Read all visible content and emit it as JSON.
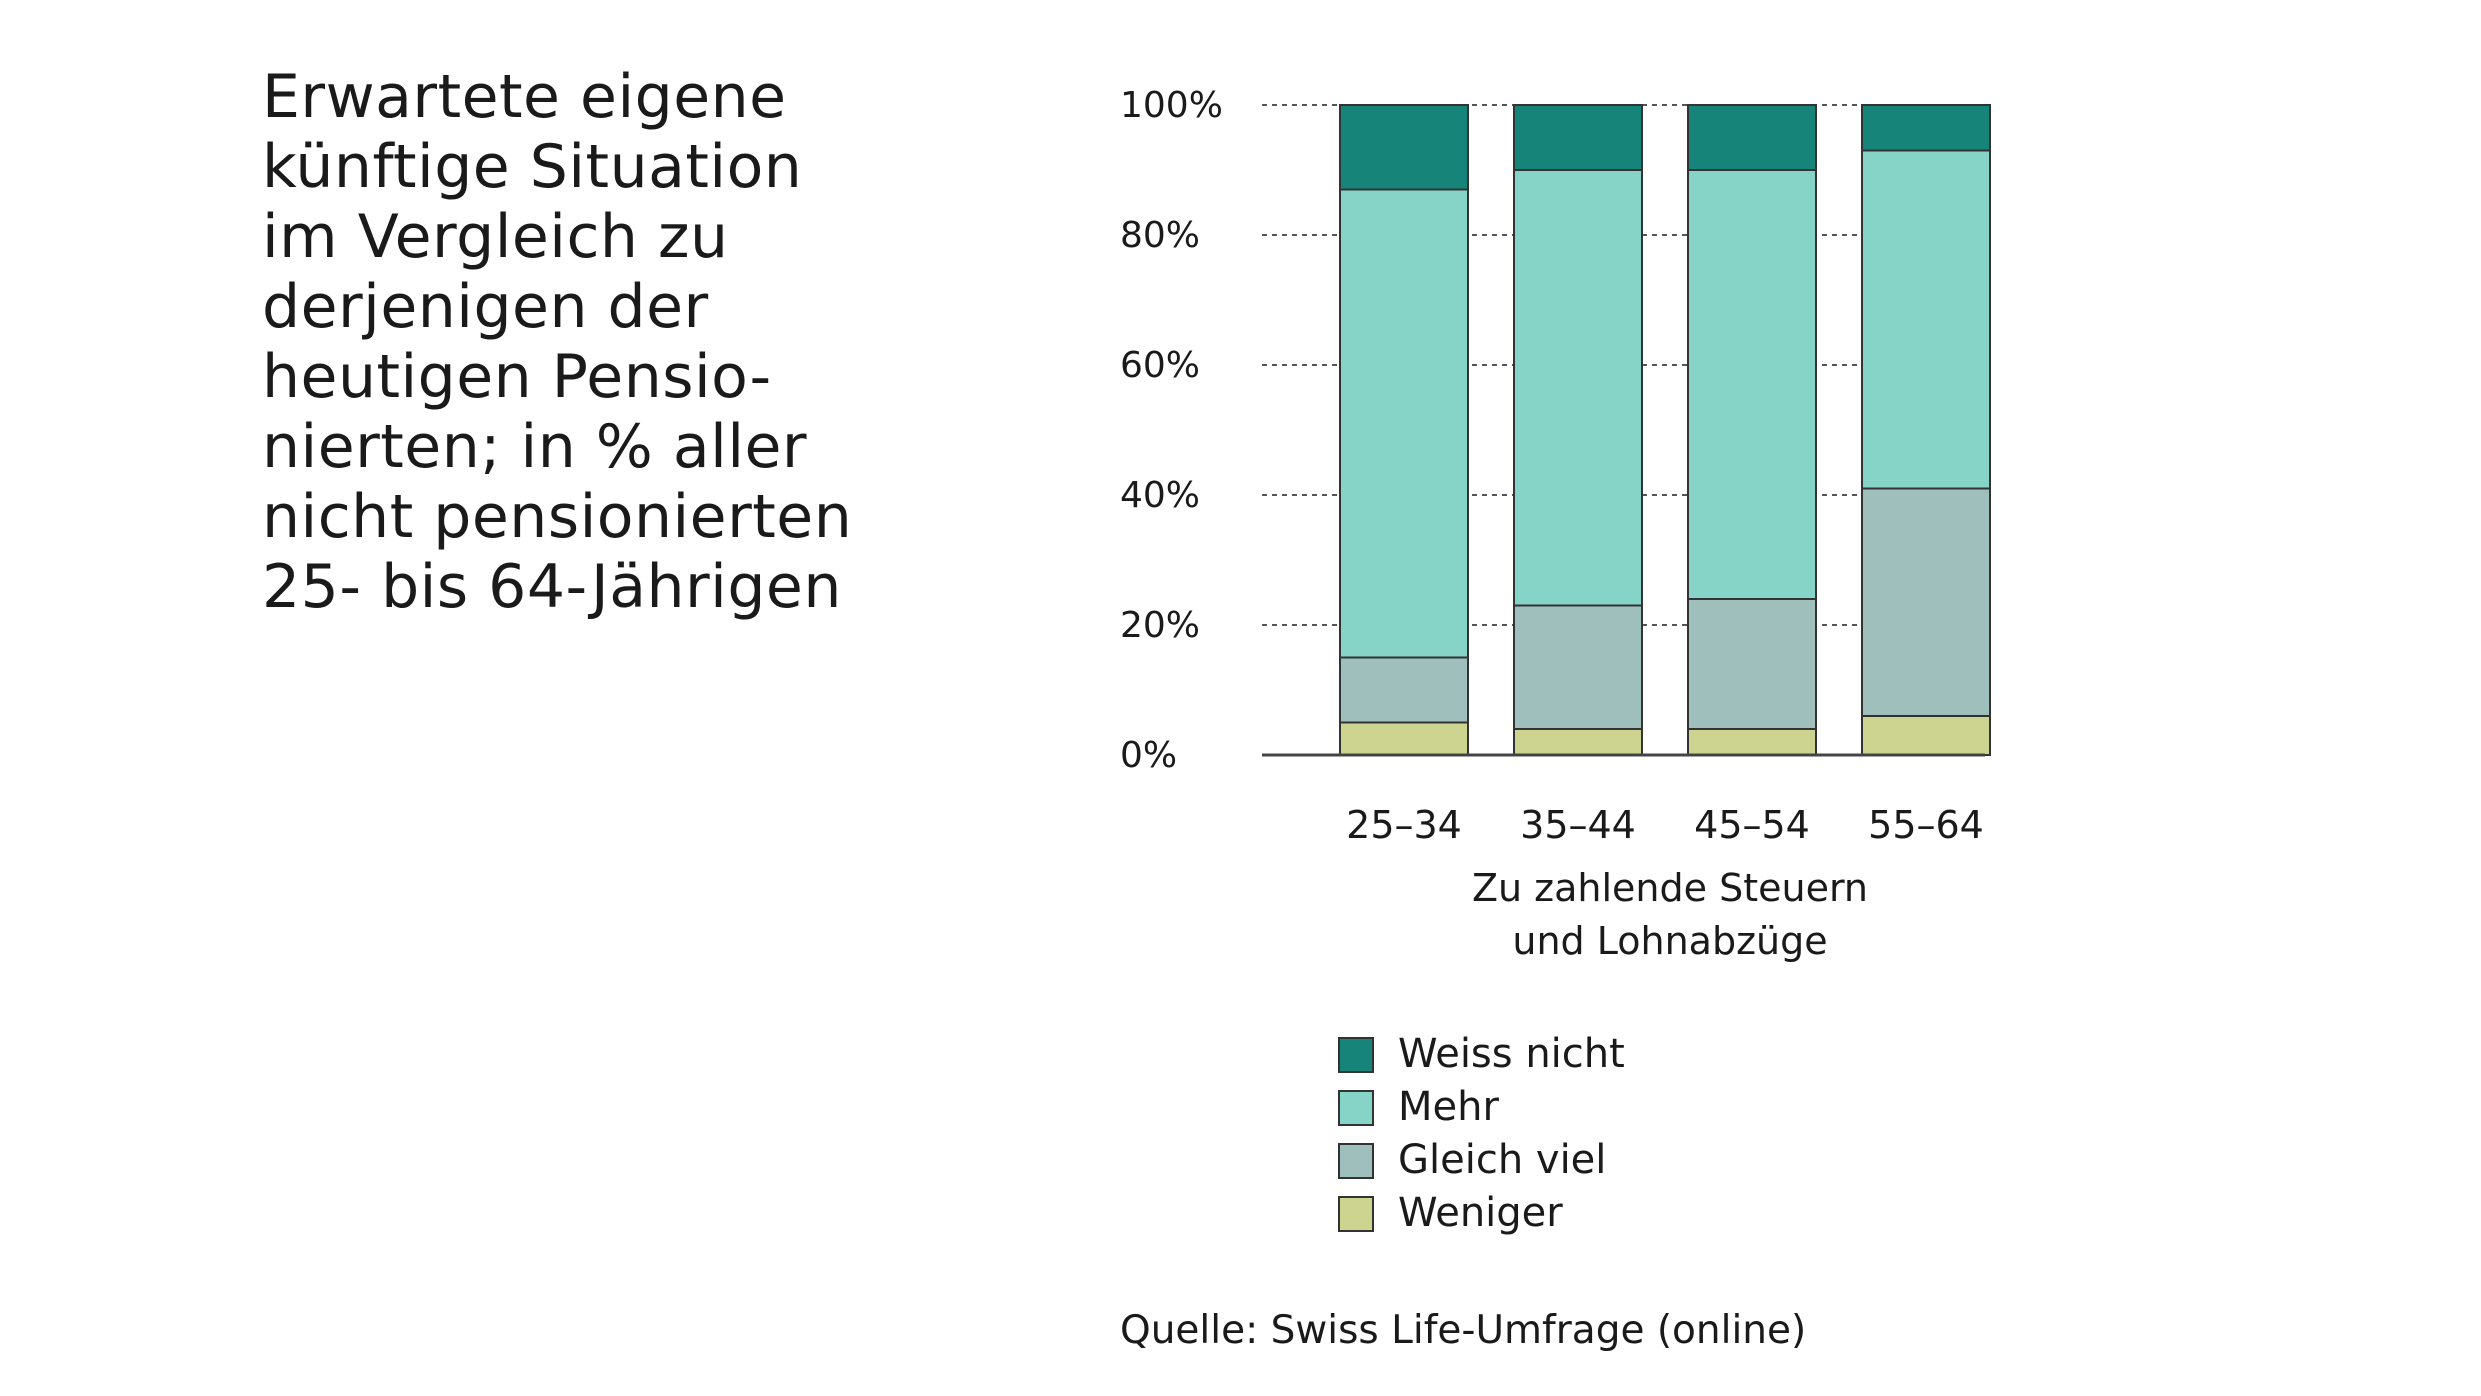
{
  "title": "Erwartete eigene\nkünftige Situation\nim Vergleich zu\nderjenigen der\nheutigen Pensio-\nnierten; in % aller\nnicht pensionierten\n25- bis 64-Jährigen",
  "source": "Quelle: Swiss Life-Umfrage (online)",
  "chart_data": {
    "type": "bar",
    "stacked": true,
    "categories": [
      "25–34",
      "35–44",
      "45–54",
      "55–64"
    ],
    "xlabel_lines": [
      "Zu zahlende Steuern",
      "und Lohnabzüge"
    ],
    "ylabel": "",
    "ylim": [
      0,
      100
    ],
    "yticks": [
      0,
      20,
      40,
      60,
      80,
      100
    ],
    "ytick_labels": [
      "0%",
      "20%",
      "40%",
      "60%",
      "80%",
      "100%"
    ],
    "grid": "horizontal dotted",
    "legend_position": "bottom",
    "series": [
      {
        "name": "Weniger",
        "color": "#cdd48f",
        "values": [
          5,
          4,
          4,
          6
        ]
      },
      {
        "name": "Gleich viel",
        "color": "#9fbfbd",
        "values": [
          10,
          19,
          20,
          35
        ]
      },
      {
        "name": "Mehr",
        "color": "#86d3c7",
        "values": [
          72,
          67,
          66,
          52
        ]
      },
      {
        "name": "Weiss nicht",
        "color": "#168479",
        "values": [
          13,
          10,
          10,
          7
        ]
      }
    ],
    "legend_order": [
      "Weiss nicht",
      "Mehr",
      "Gleich viel",
      "Weniger"
    ]
  }
}
